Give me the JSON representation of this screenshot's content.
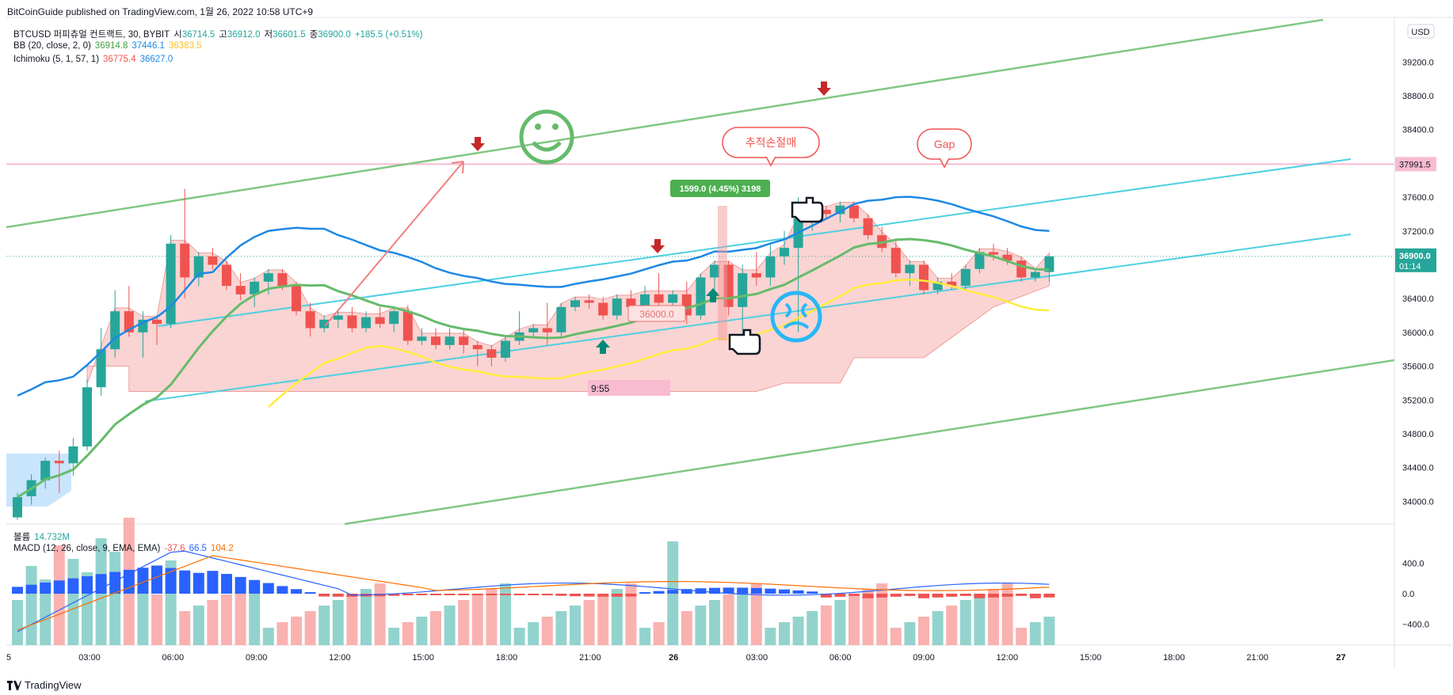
{
  "header": "BitCoinGuide published on TradingView.com, 1월 26, 2022 10:58 UTC+9",
  "footer": {
    "brand": "TradingView"
  },
  "legend": {
    "symbol": {
      "name": "BTCUSD 퍼피츄얼 컨트랙트, 30, BYBIT",
      "o_label": "시",
      "o": "36714.5",
      "h_label": "고",
      "h": "36912.0",
      "l_label": "저",
      "l": "36601.5",
      "c_label": "종",
      "c": "36900.0",
      "chg": "+185.5 (+0.51%)"
    },
    "bb": {
      "name": "BB (20, close, 2, 0)",
      "v1": "36914.8",
      "v2": "37446.1",
      "v3": "36383.5"
    },
    "ichimoku": {
      "name": "Ichimoku (5, 1, 57, 1)",
      "v1": "36775.4",
      "v2": "36627.0"
    },
    "volume": {
      "name": "볼륨",
      "value": "14.732M"
    },
    "macd": {
      "name": "MACD (12, 26, close, 9, EMA, EMA)",
      "hist": "-37.6",
      "macd": "66.5",
      "signal": "104.2"
    }
  },
  "colors": {
    "up": "#26a69a",
    "down": "#ef5350",
    "bb_mid": "#66bb6a",
    "bb_upper": "#1e88e5",
    "bb_lower": "#ffeb3b",
    "channel": "#81c784",
    "cyan": "#4dd0e1",
    "cloud": "#f8c6c4",
    "macd": "#2962ff",
    "signal": "#ff6d00"
  },
  "chart_data": {
    "type": "candlestick",
    "price_axis": {
      "ticks": [
        34000,
        34400,
        34800,
        35200,
        35600,
        36000,
        36400,
        36800,
        37200,
        37600,
        38000,
        38400,
        38800,
        39200
      ],
      "range": [
        33750,
        39700
      ]
    },
    "currency_label": "USD",
    "last_price": {
      "value": "36900.0",
      "countdown": "01:14"
    },
    "level_tag": "37991.5",
    "macd_axis": {
      "ticks": [
        400,
        0,
        -400
      ],
      "labels": [
        "400.0",
        "0.0",
        "−400.0"
      ]
    },
    "time_axis": [
      "03:00",
      "06:00",
      "09:00",
      "12:00",
      "15:00",
      "18:00",
      "21:00",
      "26",
      "03:00",
      "06:00",
      "09:00",
      "12:00",
      "15:00",
      "18:00",
      "21:00",
      "27"
    ],
    "annotations": {
      "callout_stop": "추적손절매",
      "callout_gap": "Gap",
      "measure": "1599.0 (4.45%) 3198",
      "price_box": "36000.0",
      "time_tag": "9:55"
    },
    "candles": [
      [
        33810,
        34100,
        33780,
        34050
      ],
      [
        34060,
        34320,
        33960,
        34250
      ],
      [
        34250,
        34520,
        34150,
        34480
      ],
      [
        34480,
        34600,
        34100,
        34450
      ],
      [
        34450,
        34750,
        34300,
        34650
      ],
      [
        34650,
        35450,
        34600,
        35350
      ],
      [
        35350,
        36050,
        35250,
        35800
      ],
      [
        35800,
        36500,
        35700,
        36250
      ],
      [
        36250,
        36550,
        35950,
        36000
      ],
      [
        36000,
        36250,
        35700,
        36150
      ],
      [
        36150,
        36200,
        35850,
        36100
      ],
      [
        36100,
        37150,
        36050,
        37050
      ],
      [
        37050,
        37700,
        36400,
        36650
      ],
      [
        36650,
        36950,
        36550,
        36900
      ],
      [
        36900,
        37000,
        36750,
        36800
      ],
      [
        36800,
        36850,
        36500,
        36550
      ],
      [
        36550,
        36700,
        36380,
        36450
      ],
      [
        36450,
        36650,
        36300,
        36600
      ],
      [
        36600,
        36750,
        36450,
        36700
      ],
      [
        36700,
        36750,
        36500,
        36550
      ],
      [
        36550,
        36600,
        36200,
        36250
      ],
      [
        36250,
        36350,
        35950,
        36050
      ],
      [
        36050,
        36200,
        36000,
        36150
      ],
      [
        36150,
        36250,
        36050,
        36200
      ],
      [
        36200,
        36300,
        36000,
        36050
      ],
      [
        36050,
        36250,
        36000,
        36180
      ],
      [
        36180,
        36300,
        36050,
        36100
      ],
      [
        36100,
        36300,
        36000,
        36250
      ],
      [
        36250,
        36320,
        35850,
        35900
      ],
      [
        35900,
        36050,
        35850,
        35950
      ],
      [
        35950,
        36050,
        35800,
        35850
      ],
      [
        35850,
        36050,
        35800,
        35950
      ],
      [
        35950,
        36050,
        35750,
        35850
      ],
      [
        35850,
        35900,
        35600,
        35800
      ],
      [
        35800,
        35850,
        35600,
        35700
      ],
      [
        35700,
        35950,
        35650,
        35900
      ],
      [
        35900,
        36250,
        35850,
        36000
      ],
      [
        36000,
        36100,
        35950,
        36050
      ],
      [
        36050,
        36350,
        35850,
        36000
      ],
      [
        36000,
        36350,
        35950,
        36300
      ],
      [
        36300,
        36420,
        36250,
        36380
      ],
      [
        36380,
        36450,
        36280,
        36350
      ],
      [
        36350,
        36420,
        36150,
        36200
      ],
      [
        36200,
        36450,
        36150,
        36400
      ],
      [
        36400,
        36500,
        36200,
        36300
      ],
      [
        36300,
        36550,
        36250,
        36450
      ],
      [
        36450,
        36700,
        36300,
        36350
      ],
      [
        36350,
        36500,
        36200,
        36450
      ],
      [
        36450,
        36600,
        36100,
        36200
      ],
      [
        36200,
        36700,
        36150,
        36650
      ],
      [
        36650,
        36850,
        36500,
        36800
      ],
      [
        36800,
        36850,
        36200,
        36300
      ],
      [
        36300,
        36800,
        35950,
        36700
      ],
      [
        36700,
        36950,
        36550,
        36650
      ],
      [
        36650,
        37050,
        36550,
        36900
      ],
      [
        36900,
        37200,
        36800,
        37000
      ],
      [
        37000,
        37600,
        36000,
        37350
      ],
      [
        37350,
        37550,
        37200,
        37450
      ],
      [
        37450,
        37500,
        37350,
        37400
      ],
      [
        37400,
        37550,
        37300,
        37500
      ],
      [
        37500,
        37550,
        37300,
        37350
      ],
      [
        37350,
        37400,
        37100,
        37150
      ],
      [
        37150,
        37250,
        36950,
        37000
      ],
      [
        37000,
        37100,
        36650,
        36700
      ],
      [
        36700,
        36850,
        36550,
        36800
      ],
      [
        36800,
        36850,
        36450,
        36500
      ],
      [
        36500,
        36650,
        36450,
        36600
      ],
      [
        36600,
        36700,
        36500,
        36550
      ],
      [
        36550,
        36800,
        36500,
        36750
      ],
      [
        36750,
        37000,
        36700,
        36950
      ],
      [
        36950,
        37050,
        36850,
        36920
      ],
      [
        36920,
        37000,
        36800,
        36850
      ],
      [
        36850,
        36900,
        36600,
        36650
      ],
      [
        36650,
        36750,
        36600,
        36714.5
      ],
      [
        36714.5,
        36912,
        36601.5,
        36900
      ]
    ]
  }
}
